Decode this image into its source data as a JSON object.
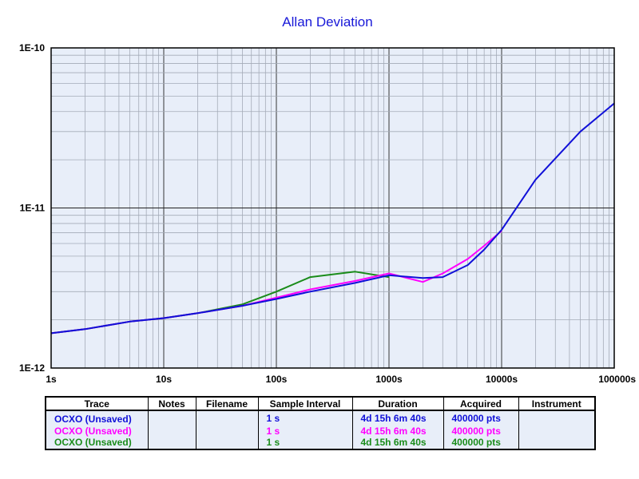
{
  "chart_data": {
    "type": "line",
    "title": "Allan Deviation",
    "xscale": "log",
    "yscale": "log",
    "xlim": [
      1,
      100000
    ],
    "ylim": [
      1e-12,
      1e-10
    ],
    "x_ticks": [
      "1s",
      "10s",
      "100s",
      "1000s",
      "10000s",
      "100000s"
    ],
    "y_ticks": [
      "1E-10",
      "1E-11",
      "1E-12"
    ],
    "grid": true,
    "series": [
      {
        "color": "#1010d8",
        "tau": [
          1,
          2,
          5,
          10,
          20,
          50,
          100,
          200,
          500,
          1000,
          2000,
          3000,
          5000,
          7000,
          10000,
          20000,
          50000,
          100000
        ],
        "adev": [
          1.65e-12,
          1.75e-12,
          1.95e-12,
          2.05e-12,
          2.2e-12,
          2.45e-12,
          2.7e-12,
          3e-12,
          3.4e-12,
          3.8e-12,
          3.65e-12,
          3.7e-12,
          4.4e-12,
          5.5e-12,
          7.3e-12,
          1.5e-11,
          3e-11,
          4.5e-11
        ]
      },
      {
        "color": "#ff00ff",
        "tau": [
          1,
          2,
          5,
          10,
          20,
          50,
          100,
          200,
          500,
          1000,
          2000,
          3000,
          5000,
          7000,
          10000
        ],
        "adev": [
          1.65e-12,
          1.75e-12,
          1.95e-12,
          2.05e-12,
          2.2e-12,
          2.45e-12,
          2.75e-12,
          3.1e-12,
          3.5e-12,
          3.9e-12,
          3.45e-12,
          3.9e-12,
          4.8e-12,
          5.8e-12,
          7.2e-12
        ]
      },
      {
        "color": "#1a8c1a",
        "tau": [
          1,
          2,
          5,
          10,
          20,
          50,
          100,
          200,
          500,
          1000
        ],
        "adev": [
          1.65e-12,
          1.75e-12,
          1.95e-12,
          2.05e-12,
          2.2e-12,
          2.5e-12,
          3e-12,
          3.7e-12,
          4e-12,
          3.7e-12
        ]
      }
    ]
  },
  "table": {
    "headers": [
      "Trace",
      "Notes",
      "Filename",
      "Sample Interval",
      "Duration",
      "Acquired",
      "Instrument"
    ],
    "rows": [
      {
        "trace": "OCXO (Unsaved)",
        "notes": "",
        "filename": "",
        "interval": "1 s",
        "duration": "4d 15h 6m 40s",
        "acquired": "400000 pts",
        "instrument": "",
        "color": "#1010d8"
      },
      {
        "trace": "OCXO (Unsaved)",
        "notes": "",
        "filename": "",
        "interval": "1 s",
        "duration": "4d 15h 6m 40s",
        "acquired": "400000 pts",
        "instrument": "",
        "color": "#ff00ff"
      },
      {
        "trace": "OCXO (Unsaved)",
        "notes": "",
        "filename": "",
        "interval": "1 s",
        "duration": "4d 15h 6m 40s",
        "acquired": "400000 pts",
        "instrument": "",
        "color": "#1a8c1a"
      }
    ]
  }
}
